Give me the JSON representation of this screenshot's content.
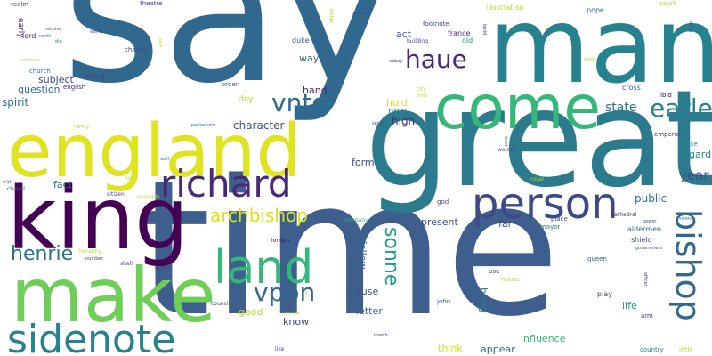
{
  "palette": {
    "dark_purple": "#440154",
    "indigo": "#482878",
    "slate_blue": "#3e4989",
    "steel_blue": "#31688e",
    "teal_blue": "#26828e",
    "teal": "#1f9e89",
    "green": "#35b779",
    "light_green": "#6ece58",
    "lime": "#b5de2b",
    "yellow": "#e0e420"
  },
  "words": [
    {
      "text": "say",
      "color": "#31688e",
      "orientation": "horizontal"
    },
    {
      "text": "time",
      "color": "#3e5f8e",
      "orientation": "horizontal"
    },
    {
      "text": "great",
      "color": "#2c7a8e",
      "orientation": "horizontal"
    },
    {
      "text": "man",
      "color": "#26828e",
      "orientation": "horizontal"
    },
    {
      "text": "england",
      "color": "#e0e420",
      "orientation": "horizontal"
    },
    {
      "text": "king",
      "color": "#440154",
      "orientation": "horizontal"
    },
    {
      "text": "make",
      "color": "#6ece58",
      "orientation": "horizontal"
    },
    {
      "text": "come",
      "color": "#35b779",
      "orientation": "horizontal"
    },
    {
      "text": "land",
      "color": "#35b779",
      "orientation": "horizontal"
    },
    {
      "text": "sidenote",
      "color": "#26828e",
      "orientation": "horizontal"
    },
    {
      "text": "person",
      "color": "#3e4989",
      "orientation": "horizontal"
    },
    {
      "text": "richard",
      "color": "#482878",
      "orientation": "horizontal"
    },
    {
      "text": "bishop",
      "color": "#31688e",
      "orientation": "vertical"
    },
    {
      "text": "vnto",
      "color": "#31688e",
      "orientation": "horizontal"
    },
    {
      "text": "vpon",
      "color": "#31688e",
      "orientation": "horizontal"
    },
    {
      "text": "haue",
      "color": "#482878",
      "orientation": "horizontal"
    },
    {
      "text": "earle",
      "color": "#26828e",
      "orientation": "horizontal"
    },
    {
      "text": "henrie",
      "color": "#2c728e",
      "orientation": "horizontal"
    },
    {
      "text": "archbishop",
      "color": "#d8e219",
      "orientation": "horizontal"
    },
    {
      "text": "sonne",
      "color": "#1f9e89",
      "orientation": "vertical"
    },
    {
      "text": "state",
      "color": "#2c728e",
      "orientation": "horizontal"
    },
    {
      "text": "year",
      "color": "#3b528b",
      "orientation": "horizontal"
    },
    {
      "text": "public",
      "color": "#2c728e",
      "orientation": "horizontal"
    },
    {
      "text": "character",
      "color": "#3b528b",
      "orientation": "horizontal"
    },
    {
      "text": "high",
      "color": "#482878",
      "orientation": "horizontal"
    },
    {
      "text": "hold",
      "color": "#d8e219",
      "orientation": "horizontal"
    },
    {
      "text": "new",
      "color": "#26828e",
      "orientation": "horizontal"
    },
    {
      "text": "spirit",
      "color": "#2c728e",
      "orientation": "horizontal"
    },
    {
      "text": "subject",
      "color": "#3e4989",
      "orientation": "horizontal"
    },
    {
      "text": "question",
      "color": "#31688e",
      "orientation": "horizontal"
    },
    {
      "text": "long",
      "color": "#3e4989",
      "orientation": "horizontal"
    },
    {
      "text": "fact",
      "color": "#31688e",
      "orientation": "horizontal"
    },
    {
      "text": "regard",
      "color": "#26828e",
      "orientation": "horizontal"
    },
    {
      "text": "present",
      "color": "#3e4989",
      "orientation": "horizontal"
    },
    {
      "text": "cause",
      "color": "#3b528b",
      "orientation": "horizontal"
    },
    {
      "text": "letter",
      "color": "#31688e",
      "orientation": "horizontal"
    },
    {
      "text": "life",
      "color": "#1f9e89",
      "orientation": "horizontal"
    },
    {
      "text": "form",
      "color": "#3e4989",
      "orientation": "horizontal"
    },
    {
      "text": "far",
      "color": "#3e4989",
      "orientation": "horizontal"
    },
    {
      "text": "appear",
      "color": "#31688e",
      "orientation": "horizontal"
    },
    {
      "text": "think",
      "color": "#d8e219",
      "orientation": "horizontal"
    },
    {
      "text": "influence",
      "color": "#35b779",
      "orientation": "horizontal"
    },
    {
      "text": "bring",
      "color": "#26828e",
      "orientation": "vertical"
    },
    {
      "text": "follow",
      "color": "#31688e",
      "orientation": "vertical"
    },
    {
      "text": "good",
      "color": "#b5de2b",
      "orientation": "horizontal"
    },
    {
      "text": "know",
      "color": "#3e4989",
      "orientation": "horizontal"
    },
    {
      "text": "hand",
      "color": "#482878",
      "orientation": "horizontal"
    },
    {
      "text": "way",
      "color": "#31688e",
      "orientation": "horizontal"
    },
    {
      "text": "act",
      "color": "#31688e",
      "orientation": "horizontal"
    },
    {
      "text": "day",
      "color": "#b5de2b",
      "orientation": "horizontal"
    },
    {
      "text": "old",
      "color": "#1f9e89",
      "orientation": "horizontal"
    },
    {
      "text": "france",
      "color": "#482878",
      "orientation": "horizontal"
    },
    {
      "text": "duke",
      "color": "#3b528b",
      "orientation": "horizontal"
    },
    {
      "text": "order",
      "color": "#31688e",
      "orientation": "horizontal"
    },
    {
      "text": "english",
      "color": "#482878",
      "orientation": "horizontal"
    },
    {
      "text": "church",
      "color": "#31688e",
      "orientation": "horizontal"
    },
    {
      "text": "early",
      "color": "#482878",
      "orientation": "vertical"
    },
    {
      "text": "lord",
      "color": "#482878",
      "orientation": "horizontal"
    },
    {
      "text": "pope",
      "color": "#31688e",
      "orientation": "horizontal"
    },
    {
      "text": "emperor",
      "color": "#482878",
      "orientation": "horizontal"
    },
    {
      "text": "prince",
      "color": "#26828e",
      "orientation": "horizontal"
    },
    {
      "text": "cross",
      "color": "#31688e",
      "orientation": "horizontal"
    },
    {
      "text": "ibid",
      "color": "#440154",
      "orientation": "horizontal"
    },
    {
      "text": "queen",
      "color": "#31688e",
      "orientation": "horizontal"
    },
    {
      "text": "aldermen",
      "color": "#31688e",
      "orientation": "horizontal"
    },
    {
      "text": "shield",
      "color": "#3e4989",
      "orientation": "horizontal"
    },
    {
      "text": "mayor",
      "color": "#26828e",
      "orientation": "horizontal"
    },
    {
      "text": "place",
      "color": "#3e4989",
      "orientation": "horizontal"
    },
    {
      "text": "cathedral",
      "color": "#482878",
      "orientation": "horizontal"
    },
    {
      "text": "play",
      "color": "#3e4989",
      "orientation": "horizontal"
    },
    {
      "text": "arm",
      "color": "#3e4989",
      "orientation": "horizontal"
    },
    {
      "text": "country",
      "color": "#26828e",
      "orientation": "horizontal"
    },
    {
      "text": "little",
      "color": "#b5de2b",
      "orientation": "horizontal"
    },
    {
      "text": "use",
      "color": "#3e4989",
      "orientation": "horizontal"
    },
    {
      "text": "house",
      "color": "#b5de2b",
      "orientation": "horizontal"
    },
    {
      "text": "john",
      "color": "#31688e",
      "orientation": "horizontal"
    },
    {
      "text": "god",
      "color": "#3e4989",
      "orientation": "horizontal"
    },
    {
      "text": "company",
      "color": "#35b779",
      "orientation": "horizontal"
    },
    {
      "text": "royal",
      "color": "#b5de2b",
      "orientation": "horizontal"
    },
    {
      "text": "wolsey",
      "color": "#3e4989",
      "orientation": "horizontal"
    },
    {
      "text": "london",
      "color": "#440154",
      "orientation": "horizontal"
    },
    {
      "text": "council",
      "color": "#3e4989",
      "orientation": "horizontal"
    },
    {
      "text": "citizen",
      "color": "#3e4989",
      "orientation": "horizontal"
    },
    {
      "text": "example",
      "color": "#b5de2b",
      "orientation": "horizontal"
    },
    {
      "text": "lion",
      "color": "#b5de2b",
      "orientation": "horizontal"
    },
    {
      "text": "earl",
      "color": "#31688e",
      "orientation": "horizontal"
    },
    {
      "text": "chapel",
      "color": "#31688e",
      "orientation": "horizontal"
    },
    {
      "text": "heraldry",
      "color": "#b5de2b",
      "orientation": "horizontal"
    },
    {
      "text": "shall",
      "color": "#3e4989",
      "orientation": "horizontal"
    },
    {
      "text": "number",
      "color": "#3e4989",
      "orientation": "horizontal"
    },
    {
      "text": "general",
      "color": "#3e4989",
      "orientation": "horizontal"
    },
    {
      "text": "sir",
      "color": "#b5de2b",
      "orientation": "horizontal"
    },
    {
      "text": "marshal",
      "color": "#b5de2b",
      "orientation": "horizontal"
    },
    {
      "text": "march",
      "color": "#3e4989",
      "orientation": "horizontal"
    },
    {
      "text": "like",
      "color": "#3e4989",
      "orientation": "horizontal"
    },
    {
      "text": "parliament",
      "color": "#26828e",
      "orientation": "horizontal"
    },
    {
      "text": "henry",
      "color": "#b5de2b",
      "orientation": "horizontal"
    },
    {
      "text": "wall",
      "color": "#31688e",
      "orientation": "horizontal"
    },
    {
      "text": "send",
      "color": "#3e4989",
      "orientation": "horizontal"
    },
    {
      "text": "south",
      "color": "#26828e",
      "orientation": "horizontal"
    },
    {
      "text": "city",
      "color": "#b5de2b",
      "orientation": "horizontal"
    },
    {
      "text": "time",
      "color": "#b5de2b",
      "orientation": "horizontal"
    },
    {
      "text": "abbey",
      "color": "#3e4989",
      "orientation": "horizontal"
    },
    {
      "text": "building",
      "color": "#3e4989",
      "orientation": "horizontal"
    },
    {
      "text": "footnote",
      "color": "#3e4989",
      "orientation": "horizontal"
    },
    {
      "text": "illustration",
      "color": "#b5de2b",
      "orientation": "horizontal"
    },
    {
      "text": "court",
      "color": "#b5de2b",
      "orientation": "horizontal"
    },
    {
      "text": "theatre",
      "color": "#3e4989",
      "orientation": "horizontal"
    },
    {
      "text": "century",
      "color": "#3e4989",
      "orientation": "horizontal"
    },
    {
      "text": "badge",
      "color": "#b5de2b",
      "orientation": "vertical"
    },
    {
      "text": "realm",
      "color": "#3e4989",
      "orientation": "horizontal"
    },
    {
      "text": "receive",
      "color": "#3e4989",
      "orientation": "horizontal"
    },
    {
      "text": "north",
      "color": "#26828e",
      "orientation": "horizontal"
    },
    {
      "text": "die",
      "color": "#26828e",
      "orientation": "horizontal"
    },
    {
      "text": "work",
      "color": "#3e4989",
      "orientation": "horizontal"
    },
    {
      "text": "charge",
      "color": "#3e4989",
      "orientation": "horizontal"
    },
    {
      "text": "crest",
      "color": "#26828e",
      "orientation": "vertical"
    },
    {
      "text": "seal",
      "color": "#b5de2b",
      "orientation": "vertical"
    },
    {
      "text": "common",
      "color": "#b5de2b",
      "orientation": "horizontal"
    },
    {
      "text": "build",
      "color": "#3e4989",
      "orientation": "vertical"
    },
    {
      "text": "army",
      "color": "#3e4989",
      "orientation": "vertical"
    },
    {
      "text": "tower",
      "color": "#b5de2b",
      "orientation": "horizontal"
    },
    {
      "text": "west",
      "color": "#26828e",
      "orientation": "vertical"
    },
    {
      "text": "government",
      "color": "#3e4989",
      "orientation": "horizontal"
    },
    {
      "text": "officer",
      "color": "#3e4989",
      "orientation": "vertical"
    },
    {
      "text": "power",
      "color": "#3e4989",
      "orientation": "horizontal"
    },
    {
      "text": "sword",
      "color": "#26828e",
      "orientation": "horizontal"
    }
  ]
}
